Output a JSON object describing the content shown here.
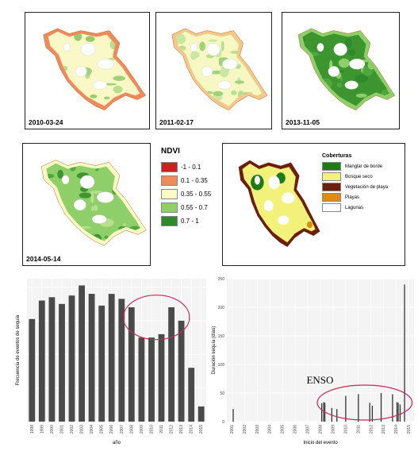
{
  "maps": [
    {
      "date": "2010-03-24",
      "theme": "2010"
    },
    {
      "date": "2011-02-17",
      "theme": "2011"
    },
    {
      "date": "2013-11-05",
      "theme": "2013"
    },
    {
      "date": "2014-05-14",
      "theme": "2014"
    }
  ],
  "ndvi_legend": {
    "title": "NDVI",
    "items": [
      {
        "label": "-1 - 0.1",
        "color": "#c8241c"
      },
      {
        "label": "0.1 - 0.35",
        "color": "#ef8b5b"
      },
      {
        "label": "0.35 - 0.55",
        "color": "#fdfbc4"
      },
      {
        "label": "0.55 - 0.7",
        "color": "#8fcf6a"
      },
      {
        "label": "0.7 - 1",
        "color": "#2f8a2d"
      }
    ]
  },
  "cover_legend": {
    "title": "Coberturas",
    "items": [
      {
        "label": "Manglar de borde",
        "color": "#1f7a18"
      },
      {
        "label": "Bosque seco",
        "color": "#f2f27a"
      },
      {
        "label": "Vegetación de playa",
        "color": "#6b1f0c"
      },
      {
        "label": "Playas",
        "color": "#e08a14"
      },
      {
        "label": "Lagunas",
        "color": "#ffffff"
      }
    ]
  },
  "chart_data": [
    {
      "type": "bar",
      "xlabel": "año",
      "ylabel": "Frecuencia de eventos de sequía",
      "categories": [
        "1998",
        "1999",
        "2000",
        "2001",
        "2002",
        "2003",
        "2004",
        "2005",
        "2006",
        "2007",
        "2008",
        "2009",
        "2010",
        "2011",
        "2012",
        "2013",
        "2014",
        "2015"
      ],
      "values": [
        61,
        72,
        74,
        70,
        75,
        81,
        76,
        69,
        76,
        73,
        68,
        50,
        50,
        52,
        68,
        60,
        32,
        9
      ],
      "ylim": [
        0,
        85
      ],
      "bar_color": "#4a4a4a",
      "annotation": "ellipse around 2008-2013"
    },
    {
      "type": "bar",
      "xlabel": "Inicio del evento",
      "ylabel": "Duración sequía (días)",
      "x_ticks": [
        "2001",
        "2002",
        "2003",
        "2004",
        "2005",
        "2006",
        "2007",
        "2008",
        "2009",
        "2010",
        "2011",
        "2012",
        "2013",
        "2014",
        "2015"
      ],
      "y_ticks": [
        "0",
        "50",
        "100",
        "150",
        "200",
        "250"
      ],
      "ylim": [
        0,
        250
      ],
      "annotation_text": "ENSO",
      "events": [
        {
          "x": 2001.1,
          "y": 22
        },
        {
          "x": 2008.1,
          "y": 32
        },
        {
          "x": 2008.25,
          "y": 34
        },
        {
          "x": 2008.35,
          "y": 33
        },
        {
          "x": 2008.9,
          "y": 24
        },
        {
          "x": 2009.3,
          "y": 22
        },
        {
          "x": 2010.0,
          "y": 45
        },
        {
          "x": 2011.0,
          "y": 48
        },
        {
          "x": 2011.9,
          "y": 33
        },
        {
          "x": 2012.1,
          "y": 28
        },
        {
          "x": 2012.8,
          "y": 50
        },
        {
          "x": 2013.7,
          "y": 48
        },
        {
          "x": 2014.05,
          "y": 34
        },
        {
          "x": 2014.15,
          "y": 33
        },
        {
          "x": 2014.3,
          "y": 30
        },
        {
          "x": 2014.65,
          "y": 240
        }
      ]
    }
  ]
}
